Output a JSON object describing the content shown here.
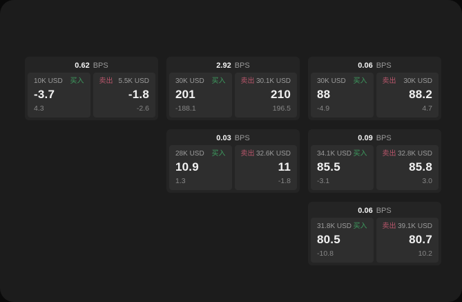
{
  "window": {
    "bg": "#1c1c1c",
    "outside_bg": "#0a0a0a"
  },
  "colors": {
    "card_bg": "#242424",
    "panel_bg": "#2e2e2e",
    "buy_green": "#3d9b5f",
    "sell_red": "#b8566b",
    "value_white": "#f2f2f2",
    "label_gray": "#9c9c9c",
    "sub_gray": "#878787"
  },
  "labels": {
    "bps": "BPS",
    "buy": "买入",
    "sell": "卖出"
  },
  "cards": [
    {
      "col": 1,
      "row": 1,
      "bps": "0.62",
      "buy": {
        "amount": "10K USD",
        "value": "-3.7",
        "sub": "4.3"
      },
      "sell": {
        "amount": "5.5K USD",
        "value": "-1.8",
        "sub": "-2.6"
      }
    },
    {
      "col": 2,
      "row": 1,
      "bps": "2.92",
      "buy": {
        "amount": "30K USD",
        "value": "201",
        "sub": "-188.1"
      },
      "sell": {
        "amount": "30.1K USD",
        "value": "210",
        "sub": "196.5"
      }
    },
    {
      "col": 3,
      "row": 1,
      "bps": "0.06",
      "buy": {
        "amount": "30K USD",
        "value": "88",
        "sub": "-4.9"
      },
      "sell": {
        "amount": "30K USD",
        "value": "88.2",
        "sub": "4.7"
      }
    },
    {
      "col": 2,
      "row": 2,
      "bps": "0.03",
      "buy": {
        "amount": "28K USD",
        "value": "10.9",
        "sub": "1.3"
      },
      "sell": {
        "amount": "32.6K USD",
        "value": "11",
        "sub": "-1.8"
      }
    },
    {
      "col": 3,
      "row": 2,
      "bps": "0.09",
      "buy": {
        "amount": "34.1K USD",
        "value": "85.5",
        "sub": "-3.1"
      },
      "sell": {
        "amount": "32.8K USD",
        "value": "85.8",
        "sub": "3.0"
      }
    },
    {
      "col": 3,
      "row": 3,
      "bps": "0.06",
      "buy": {
        "amount": "31.8K USD",
        "value": "80.5",
        "sub": "-10.8"
      },
      "sell": {
        "amount": "39.1K USD",
        "value": "80.7",
        "sub": "10.2"
      }
    }
  ]
}
